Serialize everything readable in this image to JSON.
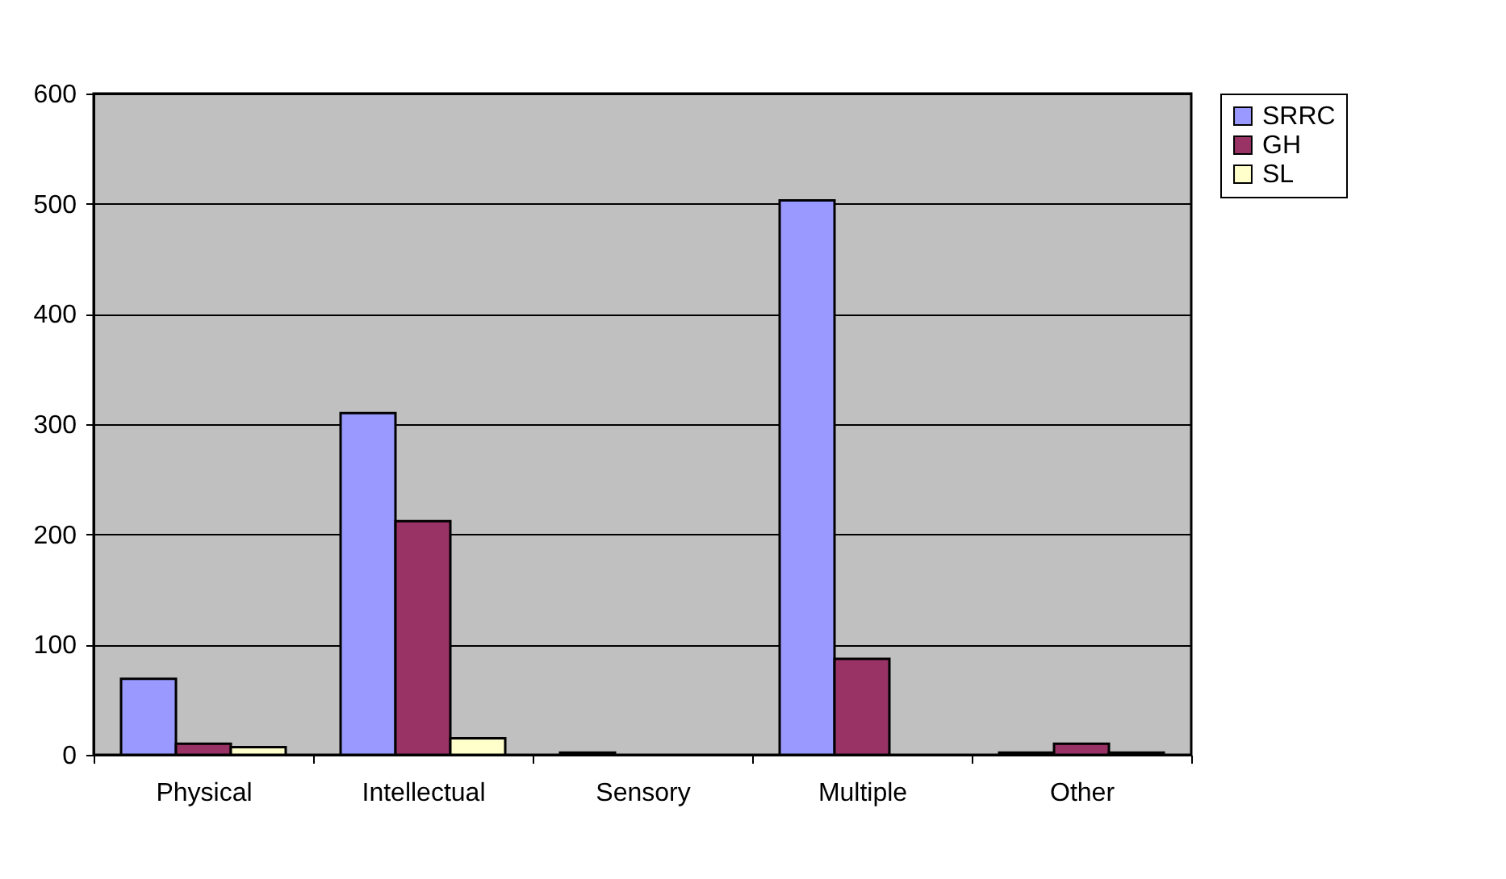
{
  "chart_data": {
    "type": "bar",
    "categories": [
      "Physical",
      "Intellectual",
      "Sensory",
      "Multiple",
      "Other"
    ],
    "series": [
      {
        "name": "SRRC",
        "color": "#9999ff",
        "values": [
          69,
          310,
          2,
          503,
          2
        ]
      },
      {
        "name": "GH",
        "color": "#993366",
        "values": [
          10,
          212,
          null,
          87,
          10
        ]
      },
      {
        "name": "SL",
        "color": "#ffffcc",
        "values": [
          7,
          15,
          null,
          null,
          2
        ]
      }
    ],
    "ylim": [
      0,
      600
    ],
    "yticks": [
      0,
      100,
      200,
      300,
      400,
      500,
      600
    ],
    "grid": "y",
    "legend": "right"
  }
}
